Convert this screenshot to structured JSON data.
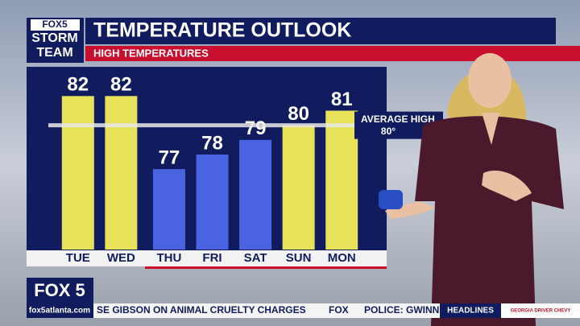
{
  "branding": {
    "logo_top": "FOX5",
    "logo_line1": "STORM",
    "logo_line2": "TEAM",
    "station": "FOX 5",
    "website": "fox5atlanta.com"
  },
  "chart_data": {
    "type": "bar",
    "title": "TEMPERATURE OUTLOOK",
    "subtitle": "HIGH TEMPERATURES",
    "categories": [
      "TUE",
      "WED",
      "THU",
      "FRI",
      "SAT",
      "SUN",
      "MON"
    ],
    "values": [
      82,
      82,
      77,
      78,
      79,
      80,
      81
    ],
    "colors": [
      "#e6e35a",
      "#e6e35a",
      "#4a63e0",
      "#4a63e0",
      "#4a63e0",
      "#e6e35a",
      "#e6e35a"
    ],
    "ylim": [
      71.5,
      84
    ],
    "reference_line": {
      "value": 80,
      "label": "AVERAGE HIGH",
      "value_label": "80°"
    }
  },
  "ticker": {
    "items": [
      "SE GIBSON ON ANIMAL CRUELTY CHARGES",
      "POLICE: GWINN"
    ],
    "separator": "FOX",
    "section": "HEADLINES",
    "sponsor": "GEORGIA DRIVER CHEVY"
  }
}
